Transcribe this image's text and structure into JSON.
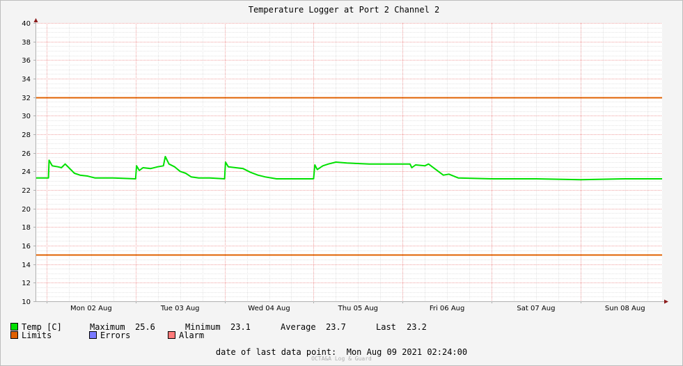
{
  "chart_data": {
    "type": "line",
    "title": "Temperature Logger at Port 2 Channel 2",
    "ylim": [
      10,
      40
    ],
    "yticks": [
      10,
      12,
      14,
      16,
      18,
      20,
      22,
      24,
      26,
      28,
      30,
      32,
      34,
      36,
      38,
      40
    ],
    "xlim": [
      "2021-08-01T21:00",
      "2021-08-08T22:00"
    ],
    "x_tick_labels": [
      "Mon 02 Aug",
      "Tue 03 Aug",
      "Wed 04 Aug",
      "Thu 05 Aug",
      "Fri 06 Aug",
      "Sat 07 Aug",
      "Sun 08 Aug"
    ],
    "grid": true,
    "series": [
      {
        "name": "Temp [C]",
        "color": "#00e000",
        "points": [
          [
            "2021-08-01T21:00",
            23.3
          ],
          [
            "2021-08-01T23:00",
            23.3
          ],
          [
            "2021-08-02T00:30",
            23.3
          ],
          [
            "2021-08-02T00:40",
            25.2
          ],
          [
            "2021-08-02T01:30",
            24.6
          ],
          [
            "2021-08-02T03:00",
            24.5
          ],
          [
            "2021-08-02T04:00",
            24.4
          ],
          [
            "2021-08-02T05:00",
            24.8
          ],
          [
            "2021-08-02T06:00",
            24.4
          ],
          [
            "2021-08-02T07:30",
            23.8
          ],
          [
            "2021-08-02T09:00",
            23.6
          ],
          [
            "2021-08-02T11:00",
            23.5
          ],
          [
            "2021-08-02T13:00",
            23.3
          ],
          [
            "2021-08-02T18:00",
            23.3
          ],
          [
            "2021-08-03T00:00",
            23.2
          ],
          [
            "2021-08-03T00:15",
            24.6
          ],
          [
            "2021-08-03T01:00",
            24.1
          ],
          [
            "2021-08-03T02:00",
            24.4
          ],
          [
            "2021-08-03T04:00",
            24.3
          ],
          [
            "2021-08-03T06:00",
            24.5
          ],
          [
            "2021-08-03T07:30",
            24.6
          ],
          [
            "2021-08-03T08:00",
            25.6
          ],
          [
            "2021-08-03T09:00",
            24.8
          ],
          [
            "2021-08-03T10:30",
            24.5
          ],
          [
            "2021-08-03T12:00",
            24.0
          ],
          [
            "2021-08-03T13:30",
            23.8
          ],
          [
            "2021-08-03T15:00",
            23.4
          ],
          [
            "2021-08-03T17:00",
            23.3
          ],
          [
            "2021-08-03T20:00",
            23.3
          ],
          [
            "2021-08-04T00:00",
            23.2
          ],
          [
            "2021-08-04T00:15",
            25.0
          ],
          [
            "2021-08-04T01:00",
            24.5
          ],
          [
            "2021-08-04T03:00",
            24.4
          ],
          [
            "2021-08-04T05:00",
            24.3
          ],
          [
            "2021-08-04T07:00",
            23.9
          ],
          [
            "2021-08-04T09:00",
            23.6
          ],
          [
            "2021-08-04T11:00",
            23.4
          ],
          [
            "2021-08-04T14:00",
            23.2
          ],
          [
            "2021-08-05T00:00",
            23.2
          ],
          [
            "2021-08-05T00:20",
            24.7
          ],
          [
            "2021-08-05T01:00",
            24.2
          ],
          [
            "2021-08-05T02:30",
            24.6
          ],
          [
            "2021-08-05T04:00",
            24.8
          ],
          [
            "2021-08-05T06:00",
            25.0
          ],
          [
            "2021-08-05T09:00",
            24.9
          ],
          [
            "2021-08-05T15:00",
            24.8
          ],
          [
            "2021-08-05T23:00",
            24.8
          ],
          [
            "2021-08-06T02:00",
            24.8
          ],
          [
            "2021-08-06T02:30",
            24.4
          ],
          [
            "2021-08-06T03:30",
            24.7
          ],
          [
            "2021-08-06T06:00",
            24.6
          ],
          [
            "2021-08-06T07:00",
            24.8
          ],
          [
            "2021-08-06T09:00",
            24.2
          ],
          [
            "2021-08-06T11:00",
            23.6
          ],
          [
            "2021-08-06T12:30",
            23.7
          ],
          [
            "2021-08-06T15:00",
            23.3
          ],
          [
            "2021-08-07T00:00",
            23.2
          ],
          [
            "2021-08-07T12:00",
            23.2
          ],
          [
            "2021-08-08T00:00",
            23.1
          ],
          [
            "2021-08-08T12:00",
            23.2
          ],
          [
            "2021-08-08T22:00",
            23.2
          ]
        ]
      },
      {
        "name": "Limits",
        "color": "#e06000",
        "values": [
          32,
          15
        ]
      }
    ]
  },
  "legend": {
    "temp_label": "Temp [C]",
    "max_label": "Maximum",
    "max_value": "25.6",
    "min_label": "Minimum",
    "min_value": "23.1",
    "avg_label": "Average",
    "avg_value": "23.7",
    "last_label": "Last",
    "last_value": "23.2",
    "limits_label": "Limits",
    "errors_label": "Errors",
    "alarm_label": "Alarm",
    "colors": {
      "temp": "#00e000",
      "limits": "#e06000",
      "errors": "#7a7aff",
      "alarm": "#ff7a7a"
    }
  },
  "footer": {
    "last_data_label": "date of last data point:",
    "last_data_value": "Mon Aug 09 2021 02:24:00",
    "watermark": "OCTA&A Log & Guard"
  }
}
